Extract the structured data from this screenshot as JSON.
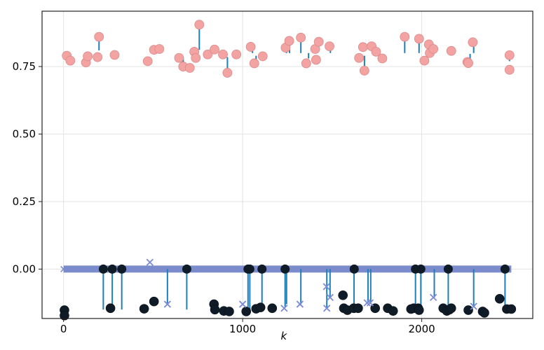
{
  "chart_data": {
    "type": "scatter",
    "title": "",
    "xlabel": "k",
    "ylabel": "",
    "xlim": [
      -120,
      2620
    ],
    "ylim": [
      -0.183,
      0.955
    ],
    "xticks": [
      0,
      1000,
      2000
    ],
    "yticks": [
      0.0,
      0.25,
      0.5,
      0.75
    ],
    "xtick_labels": [
      "0",
      "1000",
      "2000"
    ],
    "ytick_labels": [
      "0.00",
      "0.25",
      "0.50",
      "0.75"
    ],
    "grid": true,
    "colors": {
      "upper_marker": "#f4a3a3",
      "upper_marker_edge": "#d98a8a",
      "lower_marker": "#0f1b26",
      "stem": "#1f7fb8",
      "cross": "#7a8bd1",
      "band": "#7b8cc8"
    },
    "band": {
      "y": 0.0,
      "x_start": 0,
      "x_end": 2500
    },
    "series": [
      {
        "values": [
          [
            18,
            0.79
          ],
          [
            38,
            0.772
          ],
          [
            125,
            0.765
          ],
          [
            135,
            0.788
          ],
          [
            190,
            0.785
          ],
          [
            198,
            0.86
          ],
          [
            285,
            0.793
          ],
          [
            470,
            0.77
          ],
          [
            505,
            0.812
          ],
          [
            535,
            0.815
          ],
          [
            645,
            0.782
          ],
          [
            668,
            0.75
          ],
          [
            705,
            0.745
          ],
          [
            730,
            0.805
          ],
          [
            738,
            0.782
          ],
          [
            758,
            0.905
          ],
          [
            805,
            0.795
          ],
          [
            843,
            0.813
          ],
          [
            890,
            0.795
          ],
          [
            915,
            0.727
          ],
          [
            965,
            0.795
          ],
          [
            1045,
            0.823
          ],
          [
            1065,
            0.762
          ],
          [
            1112,
            0.788
          ],
          [
            1240,
            0.82
          ],
          [
            1260,
            0.845
          ],
          [
            1325,
            0.857
          ],
          [
            1355,
            0.762
          ],
          [
            1405,
            0.815
          ],
          [
            1410,
            0.775
          ],
          [
            1425,
            0.842
          ],
          [
            1485,
            0.825
          ],
          [
            1650,
            0.782
          ],
          [
            1672,
            0.822
          ],
          [
            1680,
            0.735
          ],
          [
            1720,
            0.825
          ],
          [
            1745,
            0.805
          ],
          [
            1780,
            0.78
          ],
          [
            1905,
            0.86
          ],
          [
            1985,
            0.853
          ],
          [
            2015,
            0.772
          ],
          [
            2040,
            0.832
          ],
          [
            2045,
            0.8
          ],
          [
            2065,
            0.815
          ],
          [
            2165,
            0.808
          ],
          [
            2255,
            0.767
          ],
          [
            2260,
            0.763
          ],
          [
            2285,
            0.84
          ],
          [
            2490,
            0.792
          ],
          [
            2490,
            0.738
          ]
        ],
        "stems": [
          [
            198,
            0.86,
            0.81
          ],
          [
            500,
            0.8,
            0.812
          ],
          [
            668,
            0.75,
            0.785
          ],
          [
            725,
            0.77,
            0.8
          ],
          [
            758,
            0.905,
            0.812
          ],
          [
            915,
            0.727,
            0.785
          ],
          [
            1055,
            0.8,
            0.818
          ],
          [
            1075,
            0.762,
            0.79
          ],
          [
            1245,
            0.8,
            0.82
          ],
          [
            1262,
            0.8,
            0.845
          ],
          [
            1325,
            0.8,
            0.857
          ],
          [
            1368,
            0.78,
            0.8
          ],
          [
            1410,
            0.8,
            0.815
          ],
          [
            1490,
            0.8,
            0.815
          ],
          [
            1680,
            0.735,
            0.79
          ],
          [
            1905,
            0.8,
            0.86
          ],
          [
            1985,
            0.8,
            0.85
          ],
          [
            2270,
            0.78,
            0.797
          ],
          [
            2290,
            0.8,
            0.84
          ],
          [
            2490,
            0.77,
            0.79
          ]
        ]
      },
      {
        "values": [
          [
            5,
            -0.152
          ],
          [
            5,
            -0.172
          ],
          [
            262,
            -0.145
          ],
          [
            450,
            -0.147
          ],
          [
            505,
            -0.12
          ],
          [
            840,
            -0.13
          ],
          [
            845,
            -0.15
          ],
          [
            895,
            -0.155
          ],
          [
            925,
            -0.157
          ],
          [
            1020,
            -0.157
          ],
          [
            1075,
            -0.147
          ],
          [
            1100,
            -0.142
          ],
          [
            1165,
            -0.145
          ],
          [
            1560,
            -0.097
          ],
          [
            1565,
            -0.145
          ],
          [
            1585,
            -0.152
          ],
          [
            1620,
            -0.145
          ],
          [
            1645,
            -0.145
          ],
          [
            1740,
            -0.145
          ],
          [
            1810,
            -0.145
          ],
          [
            1840,
            -0.155
          ],
          [
            1940,
            -0.148
          ],
          [
            1955,
            -0.145
          ],
          [
            1980,
            -0.145
          ],
          [
            1985,
            -0.152
          ],
          [
            2120,
            -0.145
          ],
          [
            2140,
            -0.155
          ],
          [
            2155,
            -0.15
          ],
          [
            2165,
            -0.145
          ],
          [
            2260,
            -0.152
          ],
          [
            2340,
            -0.157
          ],
          [
            2350,
            -0.162
          ],
          [
            2435,
            -0.11
          ],
          [
            2475,
            -0.148
          ],
          [
            2500,
            -0.148
          ]
        ],
        "markers_on_axis": [
          222,
          272,
          325,
          688,
          1030,
          1040,
          1108,
          1237,
          1623,
          1965,
          1995,
          2148,
          2465
        ],
        "stems": [
          [
            222,
            -0.15,
            0
          ],
          [
            272,
            -0.15,
            0
          ],
          [
            325,
            -0.15,
            0
          ],
          [
            688,
            -0.15,
            0
          ],
          [
            1030,
            -0.14,
            0
          ],
          [
            1040,
            -0.155,
            0
          ],
          [
            1108,
            -0.13,
            0
          ],
          [
            1237,
            -0.14,
            0
          ],
          [
            1245,
            -0.13,
            0
          ],
          [
            1622,
            -0.13,
            0
          ],
          [
            1965,
            -0.15,
            0
          ],
          [
            1995,
            -0.15,
            0
          ],
          [
            2148,
            -0.14,
            0
          ],
          [
            2465,
            -0.15,
            0
          ]
        ]
      },
      {
        "crosses": [
          [
            482,
            0.025
          ],
          [
            580,
            -0.13
          ],
          [
            1000,
            -0.13
          ],
          [
            1232,
            -0.145
          ],
          [
            1320,
            -0.13
          ],
          [
            1468,
            -0.065
          ],
          [
            1470,
            -0.145
          ],
          [
            1488,
            -0.105
          ],
          [
            1695,
            -0.125
          ],
          [
            1712,
            -0.125
          ],
          [
            2065,
            -0.105
          ],
          [
            2290,
            -0.138
          ]
        ],
        "stems": [
          [
            580,
            -0.13,
            0
          ],
          [
            1325,
            -0.13,
            0
          ],
          [
            1470,
            -0.145,
            0
          ],
          [
            1488,
            -0.105,
            0
          ],
          [
            1700,
            -0.125,
            0
          ],
          [
            1715,
            -0.125,
            0
          ],
          [
            2070,
            -0.105,
            0
          ],
          [
            2290,
            -0.138,
            0
          ]
        ]
      }
    ]
  }
}
